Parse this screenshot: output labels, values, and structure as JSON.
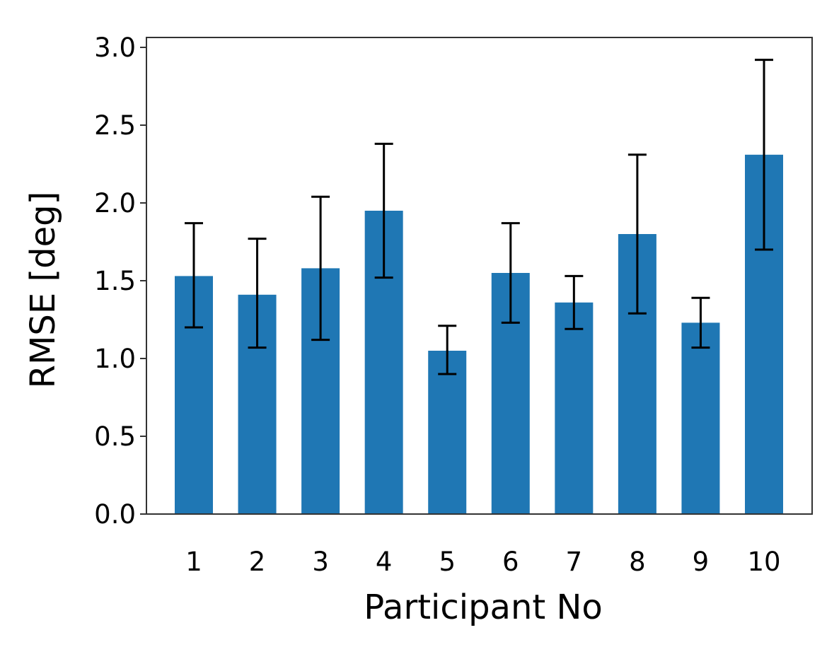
{
  "chart_data": {
    "type": "bar",
    "categories": [
      "1",
      "2",
      "3",
      "4",
      "5",
      "6",
      "7",
      "8",
      "9",
      "10"
    ],
    "values": [
      1.53,
      1.41,
      1.58,
      1.95,
      1.05,
      1.55,
      1.36,
      1.8,
      1.23,
      2.31
    ],
    "error_low": [
      1.2,
      1.07,
      1.12,
      1.52,
      0.9,
      1.23,
      1.19,
      1.29,
      1.07,
      1.7
    ],
    "error_high": [
      1.87,
      1.77,
      2.04,
      2.38,
      1.21,
      1.87,
      1.53,
      2.31,
      1.39,
      2.92
    ],
    "xlabel": "Participant No",
    "ylabel": "RMSE [deg]",
    "ylim": [
      0,
      3.0
    ],
    "yticks": [
      "0.0",
      "0.5",
      "1.0",
      "1.5",
      "2.0",
      "2.5",
      "3.0"
    ],
    "grid": false,
    "colors": {
      "bar": "#1f77b4",
      "error_bar": "#000000"
    }
  }
}
